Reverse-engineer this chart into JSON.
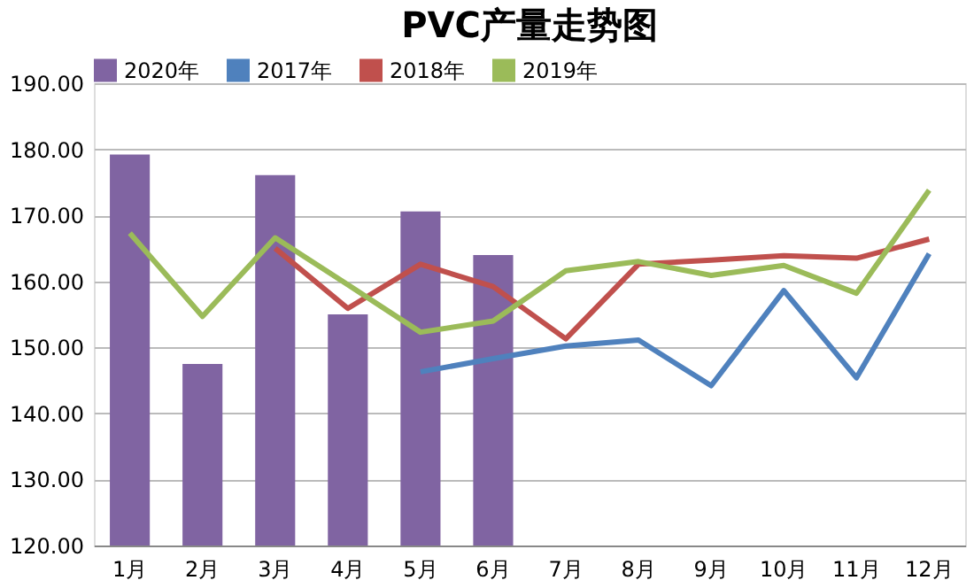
{
  "chart_data": {
    "type": "bar",
    "title": "PVC产量走势图",
    "categories": [
      "1月",
      "2月",
      "3月",
      "4月",
      "5月",
      "6月",
      "7月",
      "8月",
      "9月",
      "10月",
      "11月",
      "12月"
    ],
    "series": [
      {
        "name": "2020年",
        "color": "#8064a2",
        "values": [
          179.2,
          147.5,
          176.1,
          155.0,
          170.6,
          164.0,
          null,
          null,
          null,
          null,
          null,
          null
        ]
      },
      {
        "name": "2017年",
        "type": "line",
        "color": "#4f81bd",
        "values": [
          null,
          null,
          null,
          null,
          146.3,
          148.3,
          150.2,
          151.1,
          144.2,
          158.6,
          145.4,
          164.2
        ]
      },
      {
        "name": "2018年",
        "type": "line",
        "color": "#c0504d",
        "values": [
          null,
          null,
          165.0,
          155.9,
          162.6,
          159.2,
          151.3,
          162.6,
          163.2,
          163.9,
          163.5,
          166.4
        ]
      },
      {
        "name": "2019年",
        "type": "line",
        "color": "#9bbb59",
        "values": [
          167.3,
          154.7,
          166.6,
          159.5,
          152.3,
          154.0,
          161.6,
          163.0,
          160.9,
          162.4,
          158.2,
          173.8
        ]
      }
    ],
    "ylim": [
      120,
      190
    ],
    "yticks": [
      {
        "value": 120,
        "label": "120.00"
      },
      {
        "value": 130,
        "label": "130.00"
      },
      {
        "value": 140,
        "label": "140.00"
      },
      {
        "value": 150,
        "label": "150.00"
      },
      {
        "value": 160,
        "label": "160.00"
      },
      {
        "value": 170,
        "label": "170.00"
      },
      {
        "value": 180,
        "label": "180.00"
      },
      {
        "value": 190,
        "label": "190.00"
      }
    ],
    "grid": "y",
    "legend": "top",
    "marker": "none",
    "line_style": "solid"
  }
}
